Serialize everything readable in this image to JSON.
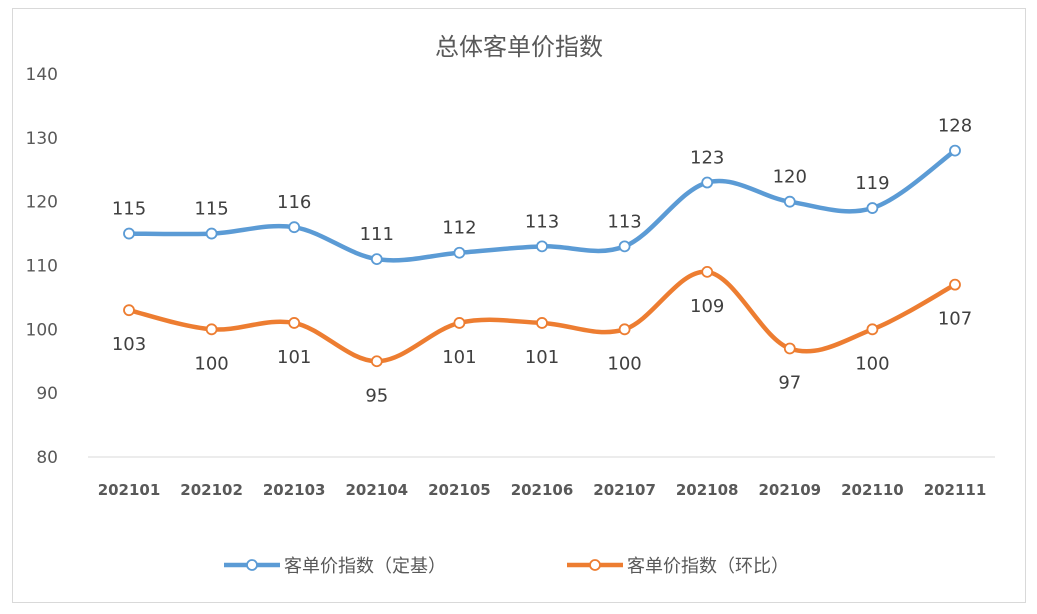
{
  "chart_data": {
    "type": "line",
    "title": "总体客单价指数",
    "xlabel": "",
    "ylabel": "",
    "categories": [
      "202101",
      "202102",
      "202103",
      "202104",
      "202105",
      "202106",
      "202107",
      "202108",
      "202109",
      "202110",
      "202111"
    ],
    "ylim": [
      80,
      140
    ],
    "yticks": [
      80,
      90,
      100,
      110,
      120,
      130,
      140
    ],
    "grid": false,
    "legend_position": "bottom",
    "smooth": true,
    "series": [
      {
        "name": "客单价指数（定基）",
        "color": "#5b9bd5",
        "label_position": "above",
        "values": [
          115,
          115,
          116,
          111,
          112,
          113,
          113,
          123,
          120,
          119,
          128
        ]
      },
      {
        "name": "客单价指数（环比）",
        "color": "#ed7d31",
        "label_position": "below",
        "values": [
          103,
          100,
          101,
          95,
          101,
          101,
          100,
          109,
          97,
          100,
          107
        ]
      }
    ]
  }
}
